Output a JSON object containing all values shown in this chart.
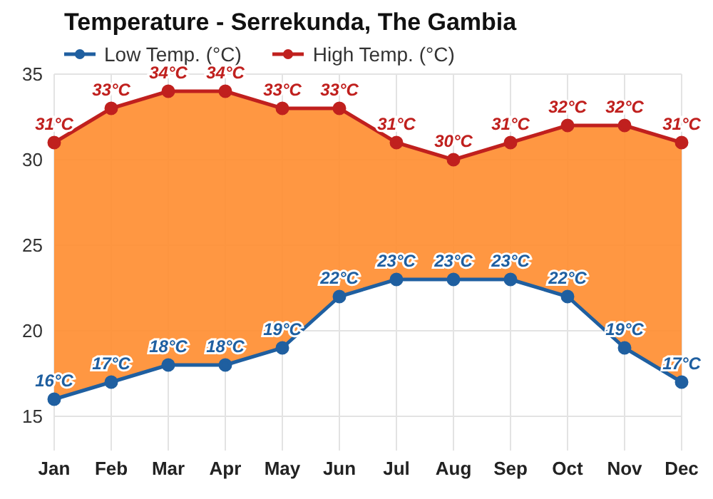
{
  "chart_data": {
    "type": "line",
    "title": "Temperature - Serrekunda, The Gambia",
    "categories": [
      "Jan",
      "Feb",
      "Mar",
      "Apr",
      "May",
      "Jun",
      "Jul",
      "Aug",
      "Sep",
      "Oct",
      "Nov",
      "Dec"
    ],
    "series": [
      {
        "name": "Low Temp. (°C)",
        "color": "#1f5fa0",
        "values": [
          16,
          17,
          18,
          18,
          19,
          22,
          23,
          23,
          23,
          22,
          19,
          17
        ],
        "value_labels": [
          "16°C",
          "17°C",
          "18°C",
          "18°C",
          "19°C",
          "22°C",
          "23°C",
          "23°C",
          "23°C",
          "22°C",
          "19°C",
          "17°C"
        ]
      },
      {
        "name": "High Temp. (°C)",
        "color": "#c0201e",
        "values": [
          31,
          33,
          34,
          34,
          33,
          33,
          31,
          30,
          31,
          32,
          32,
          31
        ],
        "value_labels": [
          "31°C",
          "33°C",
          "34°C",
          "34°C",
          "33°C",
          "33°C",
          "31°C",
          "30°C",
          "31°C",
          "32°C",
          "32°C",
          "31°C"
        ],
        "lower": [
          16,
          17,
          18,
          18,
          19,
          22,
          23,
          23,
          23,
          22,
          19,
          17
        ],
        "upper": [
          31,
          33,
          34,
          34,
          33,
          33,
          31,
          30,
          31,
          32,
          32,
          31
        ]
      }
    ],
    "ylim": [
      13,
      35
    ],
    "yticks": [
      15,
      20,
      25,
      30,
      35
    ],
    "grid": true,
    "legend": "top left",
    "marker": "circle",
    "line_style": "solid"
  }
}
